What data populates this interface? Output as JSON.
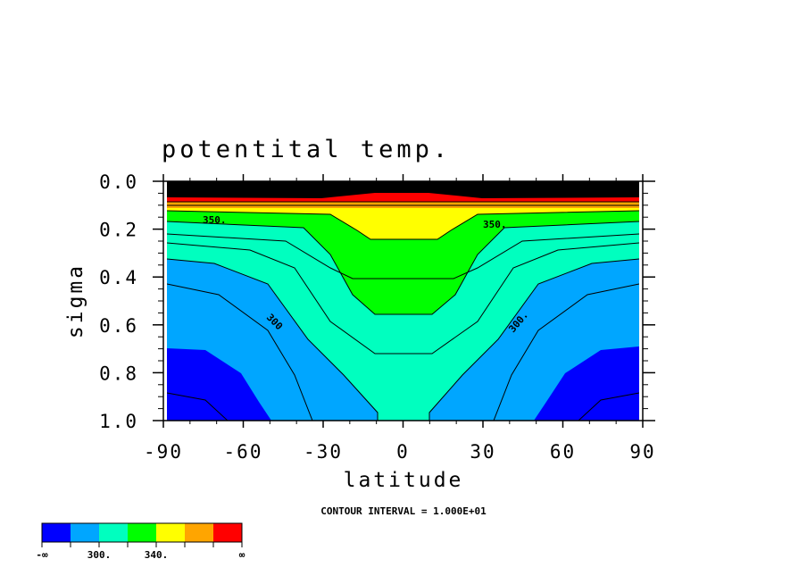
{
  "chart_data": {
    "type": "heatmap",
    "title": "potentital temp.",
    "xlabel": "latitude",
    "ylabel": "sigma",
    "xlim": [
      -90,
      90
    ],
    "ylim": [
      1.0,
      0.0
    ],
    "x_ticks": [
      "-90",
      "-60",
      "-30",
      "0",
      "30",
      "60",
      "90"
    ],
    "y_ticks": [
      "0.0",
      "0.2",
      "0.4",
      "0.6",
      "0.8",
      "1.0"
    ],
    "contour_interval_text": "CONTOUR INTERVAL = 1.000E+01",
    "contour_labels": [
      "350.",
      "350.",
      "300",
      "300."
    ],
    "colorbar": {
      "colors": [
        "#0000ff",
        "#00a6ff",
        "#00ffbf",
        "#00ff00",
        "#ffff00",
        "#ffa500",
        "#ff0000"
      ],
      "labels": [
        "-∞",
        "300.",
        "340.",
        "∞"
      ]
    },
    "grid": false,
    "legend": "bottom-left"
  }
}
